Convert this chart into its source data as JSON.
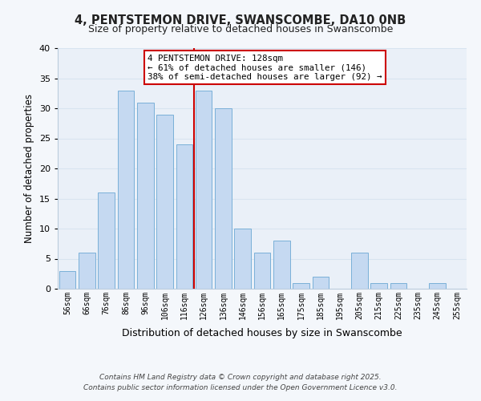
{
  "title": "4, PENTSTEMON DRIVE, SWANSCOMBE, DA10 0NB",
  "subtitle": "Size of property relative to detached houses in Swanscombe",
  "xlabel": "Distribution of detached houses by size in Swanscombe",
  "ylabel": "Number of detached properties",
  "bar_labels": [
    "56sqm",
    "66sqm",
    "76sqm",
    "86sqm",
    "96sqm",
    "106sqm",
    "116sqm",
    "126sqm",
    "136sqm",
    "146sqm",
    "156sqm",
    "165sqm",
    "175sqm",
    "185sqm",
    "195sqm",
    "205sqm",
    "215sqm",
    "225sqm",
    "235sqm",
    "245sqm",
    "255sqm"
  ],
  "bar_values": [
    3,
    6,
    16,
    33,
    31,
    29,
    24,
    33,
    30,
    10,
    6,
    8,
    1,
    2,
    0,
    6,
    1,
    1,
    0,
    1,
    0
  ],
  "bar_color": "#c5d9f1",
  "bar_edge_color": "#7ab0d8",
  "grid_color": "#d8e4f0",
  "vline_color": "#cc0000",
  "annotation_title": "4 PENTSTEMON DRIVE: 128sqm",
  "annotation_line1": "← 61% of detached houses are smaller (146)",
  "annotation_line2": "38% of semi-detached houses are larger (92) →",
  "annotation_box_color": "#ffffff",
  "annotation_box_edge": "#cc0000",
  "ylim": [
    0,
    40
  ],
  "yticks": [
    0,
    5,
    10,
    15,
    20,
    25,
    30,
    35,
    40
  ],
  "footnote1": "Contains HM Land Registry data © Crown copyright and database right 2025.",
  "footnote2": "Contains public sector information licensed under the Open Government Licence v3.0.",
  "bg_color": "#f4f7fb",
  "plot_bg_color": "#eaf0f8"
}
